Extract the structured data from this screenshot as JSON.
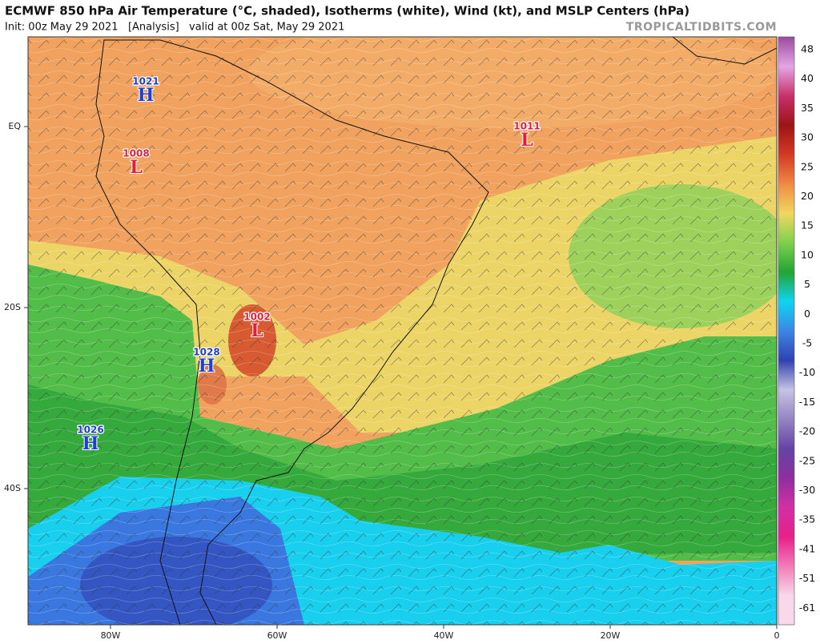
{
  "header": {
    "title": "ECMWF 850 hPa Air Temperature (°C, shaded), Isotherms (white), Wind (kt), and MSLP Centers (hPa)",
    "init": "Init: 00z May 29 2021   [Analysis]   valid at 00z Sat, May 29 2021",
    "watermark": "TROPICALTIDBITS.COM"
  },
  "map": {
    "longitude_labels": [
      "80W",
      "60W",
      "40W",
      "20W",
      "0"
    ],
    "latitude_labels": [
      "EQ",
      "20S",
      "40S"
    ],
    "pressure_centers": [
      {
        "value": "1021",
        "symbol": "H"
      },
      {
        "value": "1008",
        "symbol": "L"
      },
      {
        "value": "1011",
        "symbol": "L"
      },
      {
        "value": "1002",
        "symbol": "L"
      },
      {
        "value": "1028",
        "symbol": "H"
      },
      {
        "value": "1026",
        "symbol": "H"
      }
    ]
  },
  "colorbar": {
    "labels": [
      "48",
      "40",
      "35",
      "30",
      "25",
      "20",
      "15",
      "10",
      "5",
      "0",
      "-5",
      "-10",
      "-15",
      "-20",
      "-25",
      "-30",
      "-35",
      "-41",
      "-51",
      "-61"
    ],
    "colors": [
      "#9a4a9e",
      "#e6a6e6",
      "#c8306a",
      "#9c1414",
      "#d43a24",
      "#f08a44",
      "#f0d860",
      "#7ed04c",
      "#23a434",
      "#10d4f2",
      "#3c86e4",
      "#3042b0",
      "#c6c4e4",
      "#9484c4",
      "#6444a4",
      "#8e2ea0",
      "#d030a4",
      "#e6208a",
      "#f27cb8",
      "#f8d8ea"
    ]
  }
}
